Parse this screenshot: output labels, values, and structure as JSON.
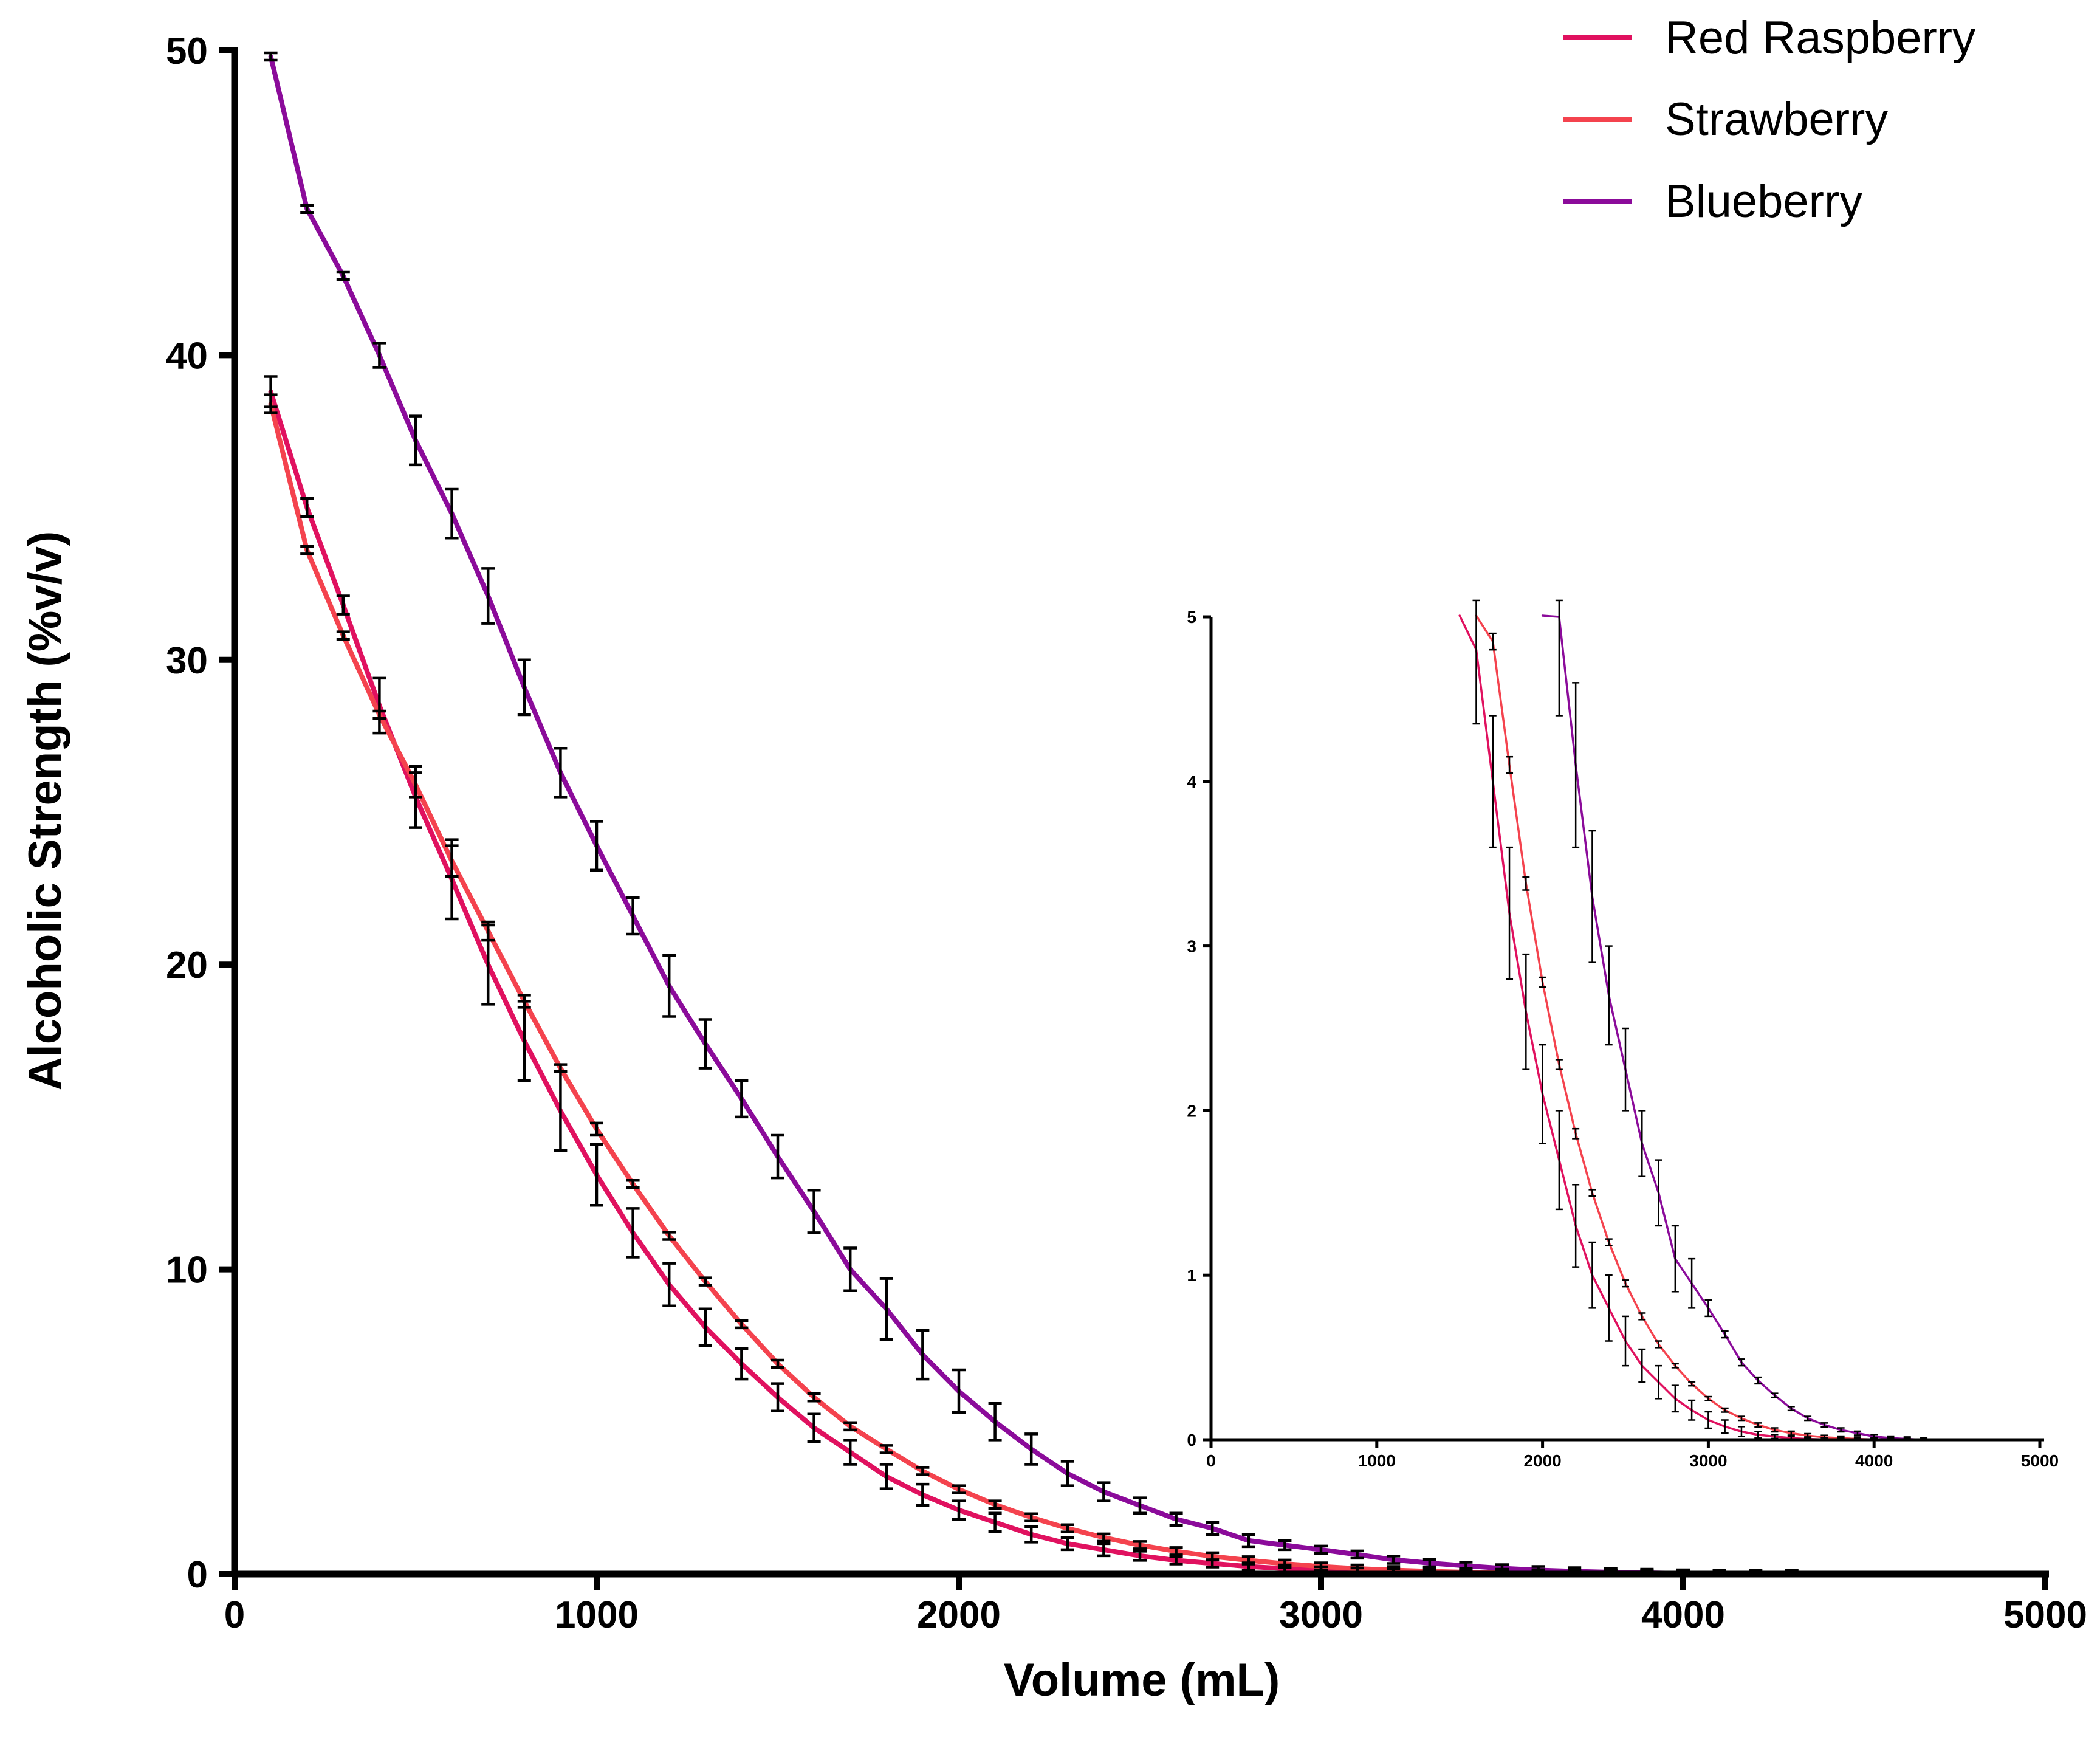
{
  "chart_data": {
    "type": "line",
    "title": "",
    "xlabel": "Volume (mL)",
    "ylabel": "Alcoholic Strength (%v/v)",
    "xlim": [
      0,
      5000
    ],
    "ylim": [
      0,
      50
    ],
    "xticks": [
      "0",
      "1000",
      "2000",
      "3000",
      "4000",
      "5000"
    ],
    "yticks": [
      "0",
      "10",
      "20",
      "30",
      "40",
      "50"
    ],
    "grid": false,
    "legend_position": "top-right",
    "series": [
      {
        "name": "Red Raspberry",
        "color": "#E0115F",
        "x": [
          100,
          200,
          300,
          400,
          500,
          600,
          700,
          800,
          900,
          1000,
          1100,
          1200,
          1300,
          1400,
          1500,
          1600,
          1700,
          1800,
          1900,
          2000,
          2100,
          2200,
          2300,
          2400,
          2500,
          2600,
          2700,
          2800,
          2900,
          3000,
          3100,
          3200,
          3300,
          3400,
          3500,
          3600,
          3700,
          3800,
          3900,
          4000
        ],
        "y": [
          38.8,
          35.0,
          31.8,
          28.5,
          25.5,
          22.8,
          20.0,
          17.5,
          15.2,
          13.1,
          11.2,
          9.5,
          8.1,
          6.9,
          5.8,
          4.8,
          4.0,
          3.2,
          2.6,
          2.1,
          1.7,
          1.3,
          1.0,
          0.8,
          0.6,
          0.45,
          0.35,
          0.25,
          0.18,
          0.12,
          0.08,
          0.05,
          0.03,
          0.02,
          0.01,
          0.005,
          0.002,
          0.001,
          0,
          0
        ],
        "err": [
          0.5,
          0.3,
          0.3,
          0.9,
          1.0,
          1.3,
          1.3,
          1.3,
          1.3,
          1.0,
          0.8,
          0.7,
          0.6,
          0.5,
          0.45,
          0.45,
          0.4,
          0.4,
          0.35,
          0.3,
          0.3,
          0.25,
          0.2,
          0.2,
          0.15,
          0.1,
          0.1,
          0.08,
          0.06,
          0.05,
          0.04,
          0.03,
          0.02,
          0.01,
          0.01,
          0,
          0,
          0,
          0,
          0
        ]
      },
      {
        "name": "Strawberry",
        "color": "#F4434E",
        "x": [
          100,
          200,
          300,
          400,
          500,
          600,
          700,
          800,
          900,
          1000,
          1100,
          1200,
          1300,
          1400,
          1500,
          1600,
          1700,
          1800,
          1900,
          2000,
          2100,
          2200,
          2300,
          2400,
          2500,
          2600,
          2700,
          2800,
          2900,
          3000,
          3100,
          3200,
          3300,
          3400,
          3500,
          3600,
          3700,
          3800,
          3900,
          4000,
          4100,
          4200
        ],
        "y": [
          38.4,
          33.6,
          30.8,
          28.2,
          25.9,
          23.4,
          21.1,
          18.8,
          16.6,
          14.6,
          12.8,
          11.1,
          9.6,
          8.2,
          6.9,
          5.8,
          4.85,
          4.1,
          3.38,
          2.78,
          2.28,
          1.86,
          1.5,
          1.2,
          0.95,
          0.75,
          0.58,
          0.45,
          0.34,
          0.25,
          0.18,
          0.13,
          0.09,
          0.06,
          0.04,
          0.025,
          0.015,
          0.01,
          0.005,
          0.002,
          0.001,
          0
        ],
        "err": [
          0.3,
          0.1,
          0.1,
          0.1,
          0.4,
          0.5,
          0.3,
          0.2,
          0.1,
          0.2,
          0.05,
          0.1,
          0.05,
          0.1,
          0.05,
          0.05,
          0.05,
          0.05,
          0.04,
          0.03,
          0.03,
          0.03,
          0.02,
          0.02,
          0.02,
          0.02,
          0.02,
          0.01,
          0.01,
          0.01,
          0.01,
          0.01,
          0.01,
          0,
          0,
          0,
          0,
          0,
          0,
          0,
          0,
          0
        ]
      },
      {
        "name": "Blueberry",
        "color": "#8B0B9A",
        "x": [
          100,
          200,
          300,
          400,
          500,
          600,
          700,
          800,
          900,
          1000,
          1100,
          1200,
          1300,
          1400,
          1500,
          1600,
          1700,
          1800,
          1900,
          2000,
          2100,
          2200,
          2300,
          2400,
          2500,
          2600,
          2700,
          2800,
          2900,
          3000,
          3100,
          3200,
          3300,
          3400,
          3500,
          3600,
          3700,
          3800,
          3900,
          4000,
          4100,
          4200,
          4300
        ],
        "y": [
          49.8,
          44.8,
          42.6,
          40.0,
          37.2,
          34.8,
          32.1,
          29.1,
          26.3,
          23.9,
          21.6,
          19.3,
          17.4,
          15.6,
          13.7,
          11.9,
          10.0,
          8.7,
          7.2,
          6.0,
          5.0,
          4.1,
          3.3,
          2.7,
          2.25,
          1.8,
          1.5,
          1.1,
          0.95,
          0.8,
          0.64,
          0.47,
          0.36,
          0.27,
          0.19,
          0.13,
          0.09,
          0.06,
          0.04,
          0.02,
          0.01,
          0.005,
          0
        ]
      }
    ],
    "inset": {
      "xlim": [
        0,
        5000
      ],
      "ylim": [
        0,
        5
      ],
      "xticks": [
        "0",
        "1000",
        "2000",
        "3000",
        "4000",
        "5000"
      ],
      "yticks": [
        "0",
        "1",
        "2",
        "3",
        "4",
        "5"
      ]
    }
  },
  "blueberry_err": [
    0.1,
    0.1,
    0.1,
    0.4,
    0.8,
    0.8,
    0.9,
    0.9,
    0.8,
    0.8,
    0.6,
    1.0,
    0.8,
    0.6,
    0.7,
    0.7,
    0.7,
    1.0,
    0.8,
    0.7,
    0.6,
    0.5,
    0.4,
    0.3,
    0.25,
    0.2,
    0.2,
    0.2,
    0.15,
    0.05,
    0.02,
    0.02,
    0.02,
    0.01,
    0.01,
    0,
    0,
    0,
    0,
    0,
    0,
    0,
    0
  ]
}
